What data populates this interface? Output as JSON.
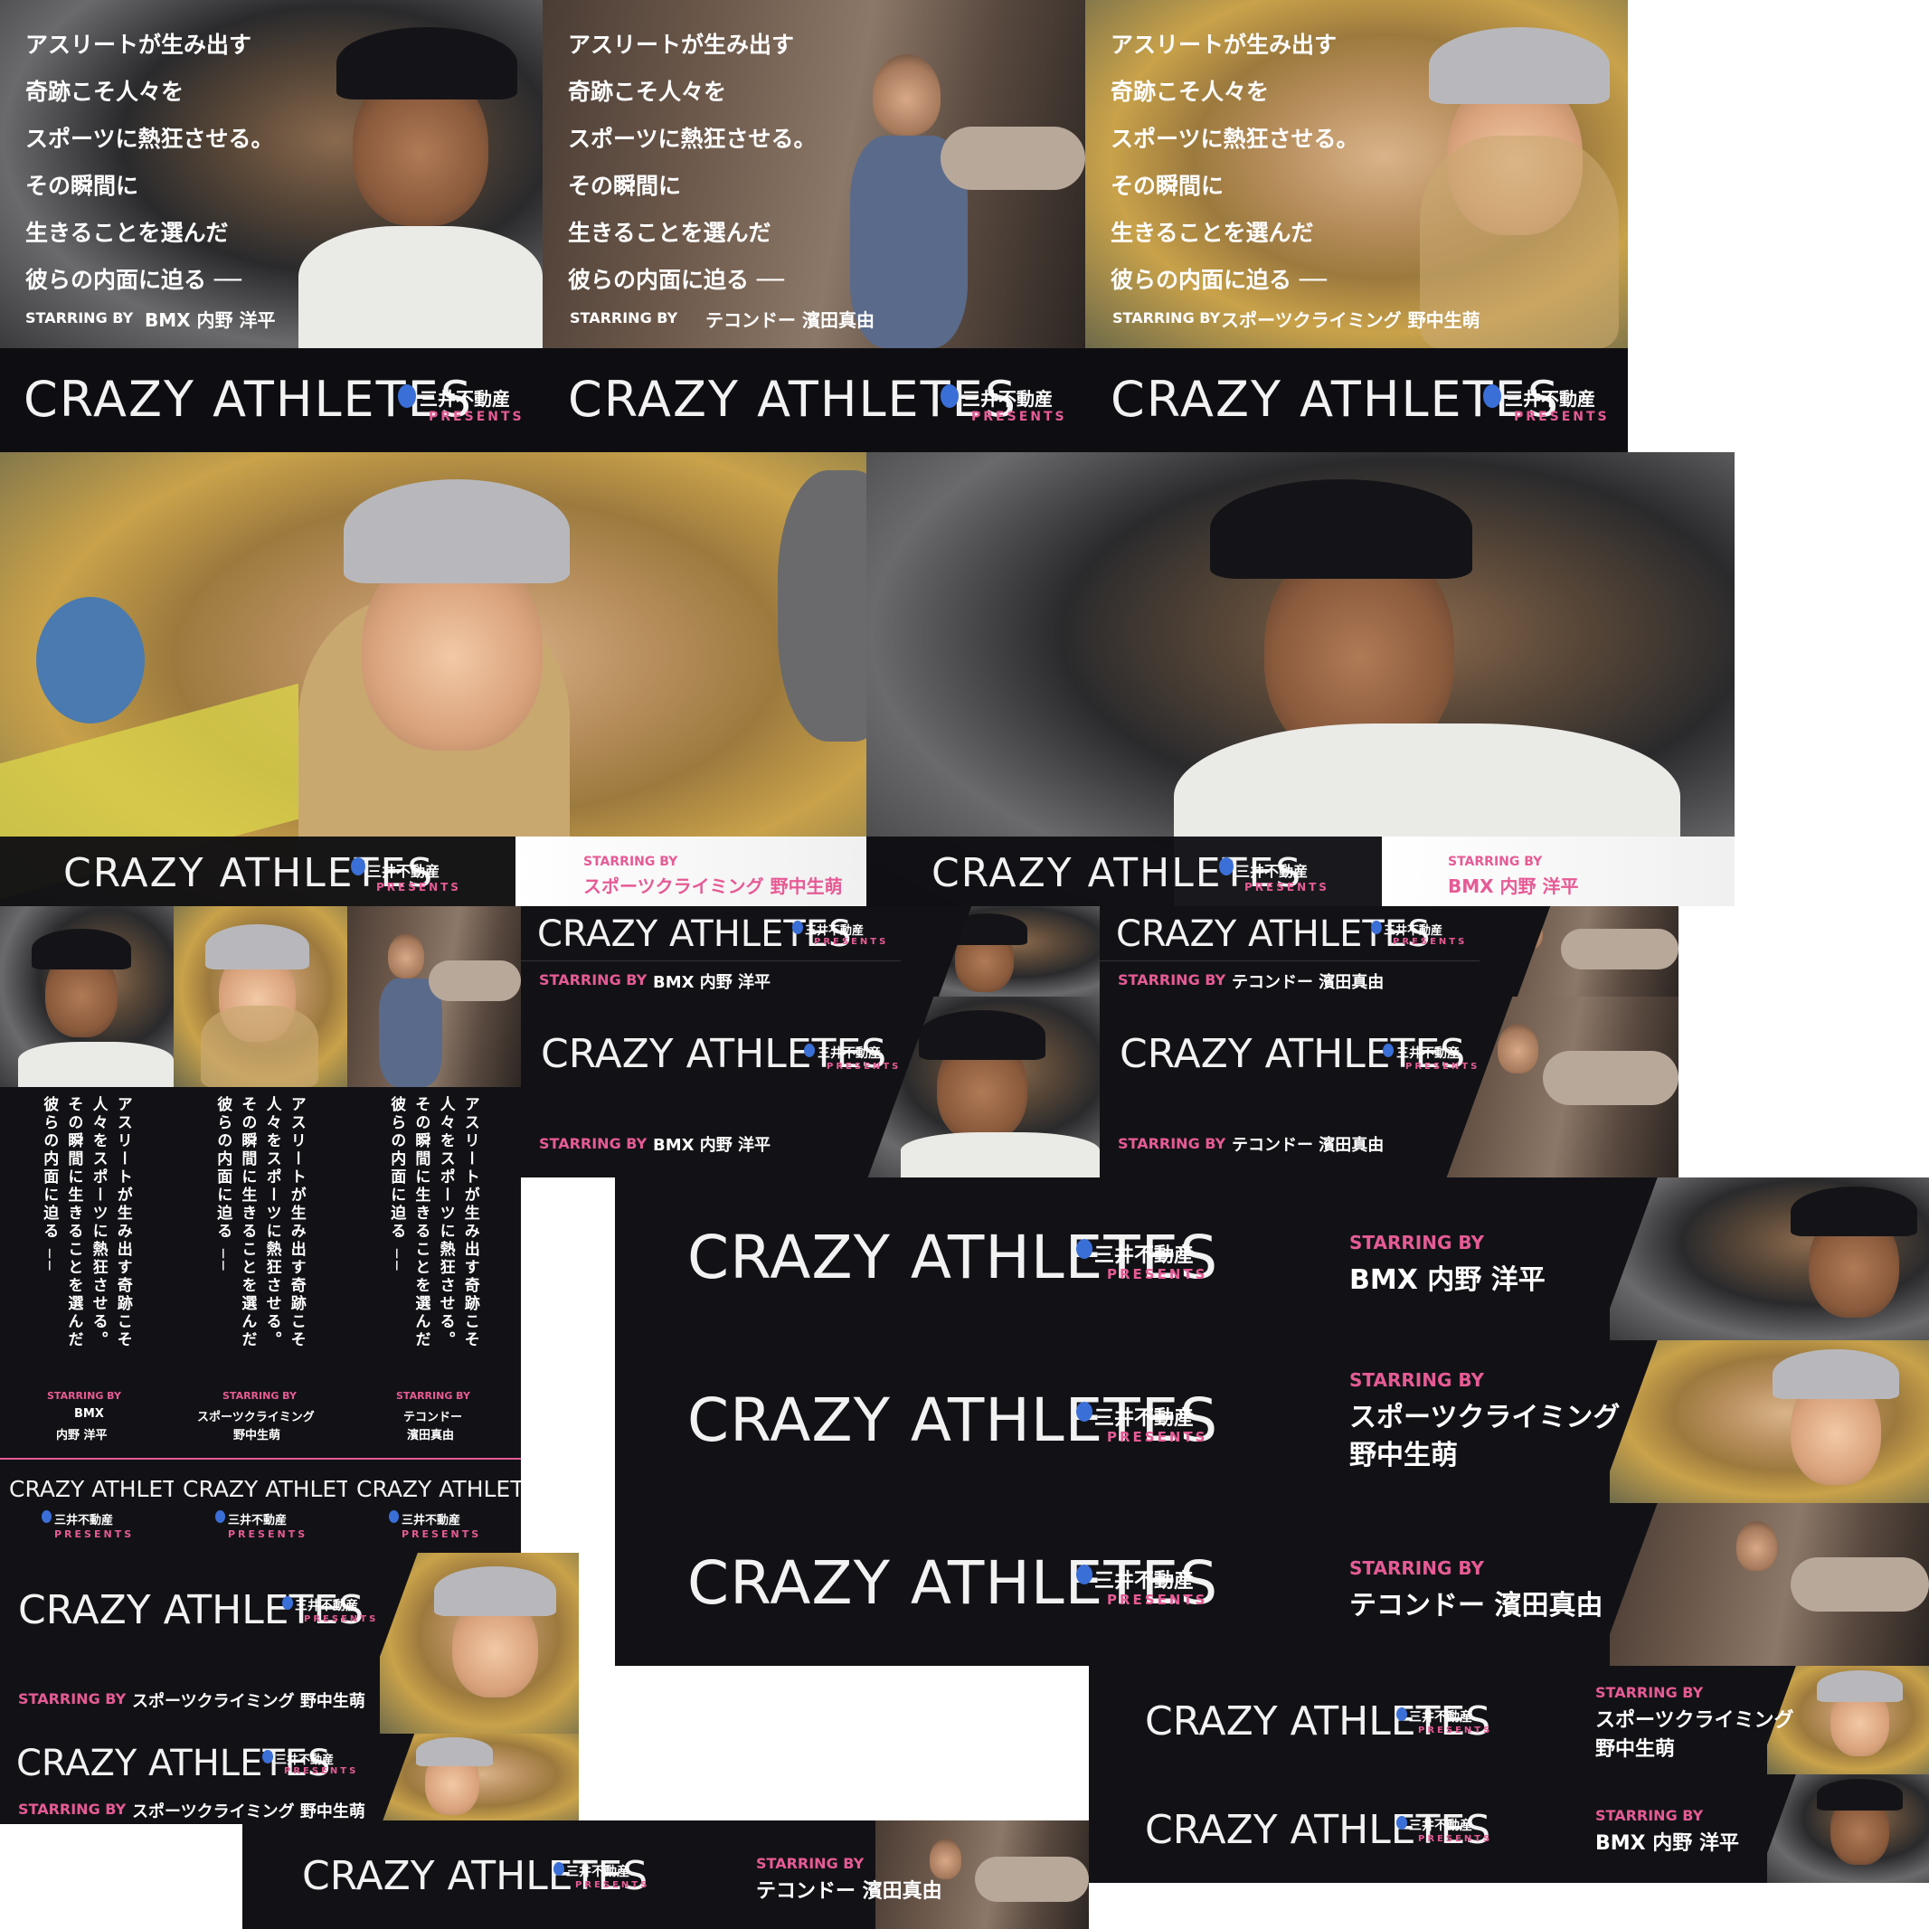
{
  "brand": {
    "title": "CRAZY ATHLETES",
    "sponsor": "三井不動産",
    "presents": "PRESENTS",
    "starring": "STARRING BY"
  },
  "copy": {
    "lines": [
      "アスリートが生み出す",
      "奇跡こそ人々を",
      "スポーツに熱狂させる。",
      "その瞬間に",
      "生きることを選んだ",
      "彼らの内面に迫る ──"
    ],
    "vertical_lines": [
      "アスリートが生み出す奇跡こそ",
      "人々をスポーツに熱狂させる。",
      "その瞬間に生きることを選んだ",
      "彼らの内面に迫る ──"
    ]
  },
  "athletes": {
    "bmx": {
      "sport": "BMX",
      "name": "内野 洋平",
      "full": "BMX 内野 洋平"
    },
    "climb": {
      "sport": "スポーツクライミング",
      "name": "野中生萌",
      "full": "スポーツクライミング 野中生萌"
    },
    "tkd": {
      "sport": "テコンドー",
      "name": "濱田真由",
      "full": "テコンドー 濱田真由"
    }
  },
  "colors": {
    "accent": "#e65b95",
    "bg": "#121216",
    "mark": "#3a6fd8"
  }
}
